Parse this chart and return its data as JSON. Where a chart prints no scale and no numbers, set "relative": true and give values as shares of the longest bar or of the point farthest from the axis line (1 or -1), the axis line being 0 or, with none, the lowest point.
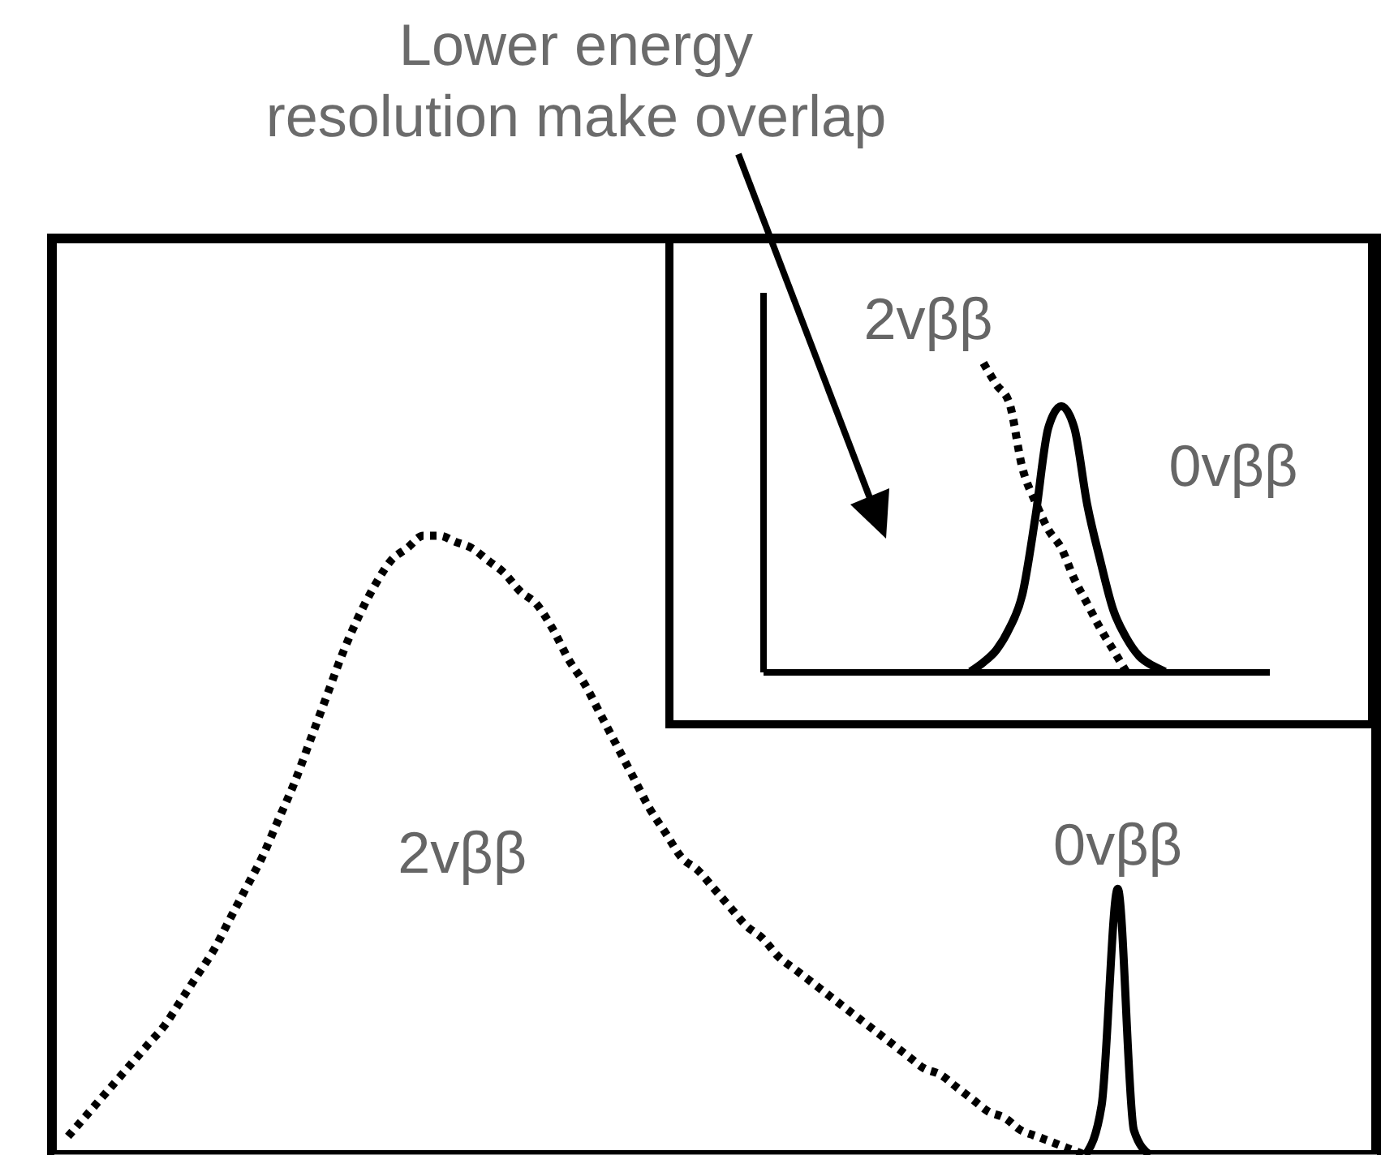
{
  "chart_data": [
    {
      "type": "line",
      "title": "Lower energy resolution make overlap",
      "relative": true,
      "categories": [
        null,
        null,
        null,
        null,
        null,
        null,
        null,
        null,
        null,
        null,
        null,
        null,
        null,
        null,
        null,
        null,
        null,
        null,
        null,
        null,
        null,
        null,
        null,
        null,
        null,
        null,
        null,
        null,
        null,
        null,
        null,
        null,
        null,
        null,
        null,
        null,
        null,
        null,
        null,
        null,
        null,
        null,
        null,
        null,
        null,
        null,
        null,
        null,
        null,
        null,
        null,
        null,
        null,
        null,
        null,
        null,
        null,
        null,
        null,
        null,
        null,
        null,
        null,
        null,
        null,
        null,
        null,
        null,
        null,
        null,
        null,
        null,
        null,
        null,
        null,
        null,
        null,
        null,
        null,
        null,
        null,
        null,
        null
      ],
      "series": [
        {
          "name": "2vββ",
          "color": "#000000",
          "line_style": "dotted",
          "values": [
            null,
            0.03,
            0.06,
            0.09,
            0.12,
            0.15,
            0.18,
            0.21,
            0.25,
            0.29,
            0.33,
            0.38,
            0.43,
            0.48,
            0.54,
            0.6,
            0.67,
            0.74,
            0.81,
            0.87,
            0.92,
            0.96,
            0.98,
            1,
            1,
            0.99,
            0.98,
            0.96,
            0.94,
            0.91,
            0.89,
            0.85,
            0.8,
            0.76,
            0.71,
            0.66,
            0.61,
            0.56,
            0.52,
            0.48,
            0.46,
            0.43,
            0.4,
            0.37,
            0.35,
            0.32,
            0.3,
            0.28,
            0.26,
            0.24,
            0.22,
            0.2,
            0.18,
            0.16,
            0.14,
            0.13,
            0.11,
            0.09,
            0.07,
            0.06,
            0.04,
            0.03,
            0.02,
            0.01,
            0,
            null,
            null,
            null,
            null,
            null,
            null,
            null,
            null,
            null,
            null,
            null,
            null,
            null,
            null,
            null,
            null,
            null,
            null
          ]
        },
        {
          "name": "0vββ",
          "color": "#000000",
          "line_style": "solid",
          "values": [
            null,
            null,
            null,
            null,
            null,
            null,
            null,
            null,
            null,
            null,
            null,
            null,
            null,
            null,
            null,
            null,
            null,
            null,
            null,
            null,
            null,
            null,
            null,
            null,
            null,
            null,
            null,
            null,
            null,
            null,
            null,
            null,
            null,
            null,
            null,
            null,
            null,
            null,
            null,
            null,
            null,
            null,
            null,
            null,
            null,
            null,
            null,
            null,
            null,
            null,
            null,
            null,
            null,
            null,
            null,
            null,
            null,
            null,
            null,
            null,
            null,
            null,
            null,
            null,
            0,
            0.08,
            0.43,
            0.04,
            0,
            null,
            null,
            null,
            null,
            null,
            null,
            null,
            null,
            null,
            null,
            null,
            null,
            null,
            null
          ]
        }
      ]
    },
    {
      "type": "line",
      "relative": true,
      "categories": [
        null,
        null,
        null,
        null,
        null,
        null,
        null,
        null,
        null,
        null,
        null,
        null,
        null,
        null,
        null,
        null,
        null,
        null,
        null,
        null,
        null,
        null,
        null,
        null,
        null,
        null,
        null,
        null,
        null,
        null,
        null,
        null,
        null,
        null,
        null,
        null,
        null,
        null,
        null,
        null
      ],
      "series": [
        {
          "name": "2vββ",
          "color": "#000000",
          "line_style": "dotted",
          "values": [
            null,
            null,
            null,
            null,
            null,
            null,
            null,
            null,
            null,
            null,
            null,
            null,
            null,
            null,
            null,
            null,
            null,
            1,
            0.93,
            0.87,
            0.66,
            0.55,
            0.46,
            0.4,
            0.3,
            0.22,
            0.14,
            0.07,
            0,
            null,
            null,
            null,
            null,
            null,
            null,
            null,
            null,
            null,
            null,
            null
          ]
        },
        {
          "name": "0vββ",
          "color": "#000000",
          "line_style": "solid",
          "values": [
            null,
            null,
            null,
            null,
            null,
            null,
            null,
            null,
            null,
            null,
            null,
            null,
            null,
            null,
            null,
            null,
            0,
            0.03,
            0.07,
            0.14,
            0.25,
            0.5,
            0.79,
            0.86,
            0.79,
            0.54,
            0.36,
            0.2,
            0.11,
            0.05,
            0.02,
            0,
            null,
            null,
            null,
            null,
            null,
            null,
            null,
            null
          ]
        }
      ]
    }
  ]
}
